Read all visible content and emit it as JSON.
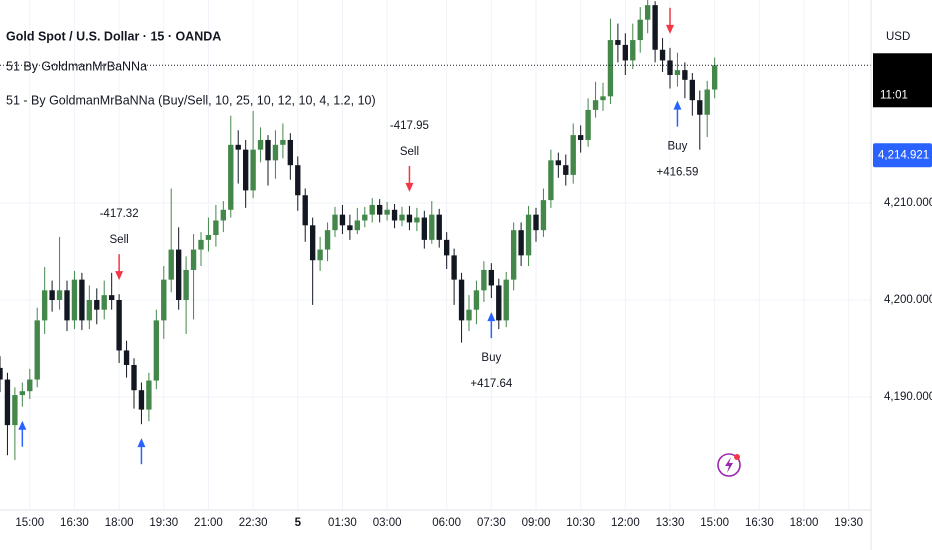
{
  "chart_data": {
    "type": "candlestick",
    "title": "Gold Spot / U.S. Dollar · 15 · OANDA",
    "indicator_short": "51 By GoldmanMrBaNNa",
    "indicator_full": "51 - By GoldmanMrBaNNa (Buy/Sell, 10, 25, 10, 12, 10, 4, 1.2, 10)",
    "currency": "USD",
    "countdown": "11:01",
    "up_color": "#43884a",
    "down_color": "#131722",
    "open": [
      4193.0,
      4191.8,
      4187.1,
      4190.2,
      4190.6,
      4191.8,
      4197.9,
      4201.0,
      4200.0,
      4201.0,
      4197.9,
      4202.1,
      4197.9,
      4200.0,
      4199.0,
      4200.5,
      4200.0,
      4194.8,
      4193.3,
      4190.7,
      4188.7,
      4191.7,
      4197.9,
      4202.1,
      4205.2,
      4200.0,
      4203.1,
      4205.2,
      4206.2,
      4206.7,
      4208.2,
      4209.3,
      4216.0,
      4215.5,
      4211.3,
      4215.5,
      4216.5,
      4214.4,
      4216.0,
      4216.5,
      4213.9,
      4210.8,
      4207.7,
      4204.1,
      4205.2,
      4207.2,
      4208.8,
      4207.7,
      4207.2,
      4208.2,
      4208.8,
      4209.8,
      4208.8,
      4209.3,
      4208.2,
      4208.8,
      4208.0,
      4208.5,
      4206.2,
      4208.8,
      4206.2,
      4204.6,
      4202.1,
      4197.9,
      4199.0,
      4201.0,
      4203.1,
      4201.5,
      4197.9,
      4202.1,
      4207.2,
      4204.6,
      4208.8,
      4207.2,
      4210.3,
      4214.4,
      4213.9,
      4212.9,
      4217.0,
      4216.5,
      4219.6,
      4220.6,
      4221.0,
      4226.8,
      4226.3,
      4224.7,
      4226.8,
      4228.9,
      4230.4,
      4225.8,
      4224.7,
      4223.2,
      4223.7,
      4222.7,
      4220.6,
      4219.1,
      4221.7
    ],
    "high": [
      4194.2,
      4192.5,
      4191.0,
      4191.5,
      4192.9,
      4199.2,
      4203.4,
      4202.0,
      4206.5,
      4202.0,
      4203.0,
      4202.8,
      4201.5,
      4201.2,
      4202.0,
      4202.8,
      4200.6,
      4195.8,
      4194.0,
      4191.5,
      4192.5,
      4199.0,
      4203.5,
      4211.5,
      4207.5,
      4204.5,
      4206.8,
      4207.0,
      4208.5,
      4209.8,
      4210.2,
      4219.0,
      4217.5,
      4216.5,
      4219.5,
      4217.8,
      4217.0,
      4217.5,
      4218.2,
      4217.2,
      4214.8,
      4211.5,
      4208.5,
      4206.5,
      4208.0,
      4209.6,
      4209.8,
      4208.8,
      4209.5,
      4209.6,
      4210.5,
      4210.4,
      4210.1,
      4209.9,
      4209.6,
      4209.7,
      4209.5,
      4209.2,
      4210.2,
      4209.4,
      4207.0,
      4205.3,
      4202.8,
      4200.5,
      4202.0,
      4204.0,
      4203.8,
      4202.2,
      4202.9,
      4208.0,
      4208.0,
      4209.7,
      4209.5,
      4211.5,
      4215.5,
      4215.2,
      4215.0,
      4218.2,
      4218.0,
      4220.8,
      4222.5,
      4222.4,
      4229.0,
      4228.5,
      4227.5,
      4228.5,
      4230.2,
      4231.5,
      4230.8,
      4227.0,
      4226.0,
      4225.5,
      4224.5,
      4223.4,
      4221.6,
      4222.6,
      4225.0
    ],
    "low": [
      4190.5,
      4184.0,
      4183.5,
      4189.0,
      4189.8,
      4191.0,
      4196.5,
      4198.8,
      4199.0,
      4196.8,
      4197.0,
      4196.9,
      4197.0,
      4197.5,
      4198.0,
      4199.0,
      4193.5,
      4192.0,
      4188.8,
      4187.2,
      4187.5,
      4190.8,
      4196.0,
      4200.8,
      4199.0,
      4196.5,
      4198.0,
      4203.5,
      4205.0,
      4205.5,
      4207.0,
      4208.5,
      4212.0,
      4209.5,
      4210.5,
      4214.2,
      4211.8,
      4212.5,
      4214.6,
      4212.4,
      4209.2,
      4206.0,
      4199.5,
      4203.0,
      4204.0,
      4206.5,
      4206.8,
      4206.2,
      4206.8,
      4207.5,
      4208.0,
      4208.0,
      4208.2,
      4207.4,
      4207.6,
      4207.2,
      4207.1,
      4205.3,
      4205.8,
      4205.4,
      4203.2,
      4199.5,
      4195.6,
      4196.8,
      4197.5,
      4199.8,
      4200.2,
      4197.0,
      4197.2,
      4201.0,
      4203.5,
      4203.5,
      4206.0,
      4206.5,
      4209.5,
      4212.6,
      4211.8,
      4212.0,
      4215.2,
      4215.8,
      4218.8,
      4219.5,
      4220.2,
      4224.5,
      4223.2,
      4223.8,
      4225.5,
      4227.5,
      4224.5,
      4223.5,
      4221.8,
      4222.0,
      4220.8,
      4219.0,
      4215.5,
      4216.8,
      4220.8
    ],
    "close": [
      4191.8,
      4187.1,
      4190.2,
      4190.6,
      4191.8,
      4197.9,
      4201.0,
      4200.0,
      4201.0,
      4197.9,
      4202.1,
      4197.9,
      4200.0,
      4199.0,
      4200.5,
      4200.0,
      4194.8,
      4193.3,
      4190.7,
      4188.7,
      4191.7,
      4197.9,
      4202.1,
      4205.2,
      4200.0,
      4203.1,
      4205.2,
      4206.2,
      4206.7,
      4208.2,
      4209.3,
      4216.0,
      4215.5,
      4211.3,
      4215.5,
      4216.5,
      4214.4,
      4216.0,
      4216.5,
      4213.9,
      4210.8,
      4207.7,
      4204.1,
      4205.2,
      4207.2,
      4208.8,
      4207.7,
      4207.2,
      4208.2,
      4208.8,
      4209.8,
      4208.8,
      4209.3,
      4208.2,
      4208.8,
      4208.0,
      4208.5,
      4206.2,
      4208.8,
      4206.2,
      4204.6,
      4202.1,
      4197.9,
      4199.0,
      4201.0,
      4203.1,
      4201.5,
      4197.9,
      4202.1,
      4207.2,
      4204.6,
      4208.8,
      4207.2,
      4210.3,
      4214.4,
      4213.9,
      4212.9,
      4217.0,
      4216.5,
      4219.6,
      4220.6,
      4221.0,
      4226.8,
      4226.3,
      4224.7,
      4226.8,
      4228.9,
      4230.4,
      4225.8,
      4224.7,
      4223.2,
      4223.7,
      4222.7,
      4220.6,
      4219.1,
      4221.7,
      4224.2
    ],
    "xlim": [
      0,
      117
    ],
    "xticks": [
      {
        "value": 4,
        "label": "15:00"
      },
      {
        "value": 10,
        "label": "16:30"
      },
      {
        "value": 16,
        "label": "18:00"
      },
      {
        "value": 22,
        "label": "19:30"
      },
      {
        "value": 28,
        "label": "21:00"
      },
      {
        "value": 34,
        "label": "22:30"
      },
      {
        "value": 40,
        "label": "5"
      },
      {
        "value": 46,
        "label": "01:30"
      },
      {
        "value": 52,
        "label": "03:00"
      },
      {
        "value": 60,
        "label": "06:00"
      },
      {
        "value": 66,
        "label": "07:30"
      },
      {
        "value": 72,
        "label": "09:00"
      },
      {
        "value": 78,
        "label": "10:30"
      },
      {
        "value": 84,
        "label": "12:00"
      },
      {
        "value": 90,
        "label": "13:30"
      },
      {
        "value": 96,
        "label": "15:00"
      },
      {
        "value": 102,
        "label": "16:30"
      },
      {
        "value": 108,
        "label": "18:00"
      },
      {
        "value": 114,
        "label": "19:30"
      }
    ],
    "ylim": [
      4178.35,
      4230.93
    ],
    "yticks": [
      {
        "value": 4190,
        "label": "4,190.000"
      },
      {
        "value": 4200,
        "label": "4,200.000"
      },
      {
        "value": 4210,
        "label": "4,210.000"
      }
    ],
    "grid": true,
    "marker_price": {
      "value": 4214.921,
      "label": "4,214.921"
    },
    "buy_arrows": [
      3,
      19,
      66,
      91
    ],
    "sell_arrows": [
      16,
      55,
      90
    ],
    "signal_labels": [
      {
        "index": 16,
        "side": "above",
        "lines": [
          "-417.32",
          "Sell"
        ]
      },
      {
        "index": 55,
        "side": "above",
        "lines": [
          "-417.95",
          "Sell"
        ]
      },
      {
        "index": 66,
        "side": "below",
        "lines": [
          "Buy",
          "+417.64"
        ]
      },
      {
        "index": 91,
        "side": "below",
        "lines": [
          "Buy",
          "+416.59"
        ]
      }
    ]
  }
}
